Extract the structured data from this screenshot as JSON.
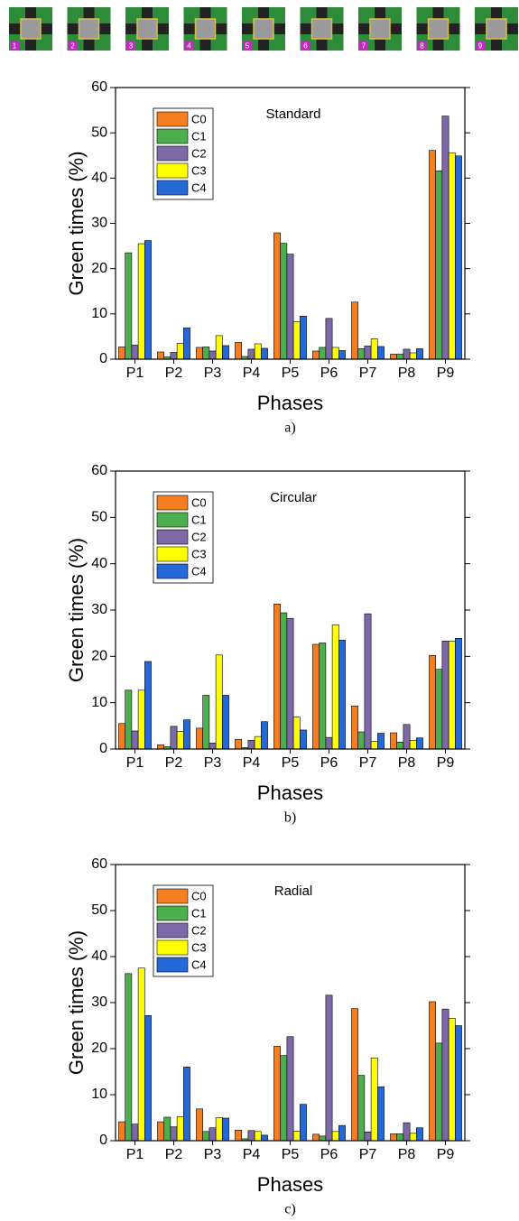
{
  "phase_icons": {
    "labels": [
      "1",
      "2",
      "3",
      "4",
      "5",
      "6",
      "7",
      "8",
      "9"
    ]
  },
  "chart_data": [
    {
      "type": "bar",
      "title": "Standard",
      "caption": "a)",
      "x_label": "Phases",
      "y_label": "Green times (%)",
      "categories": [
        "P1",
        "P2",
        "P3",
        "P4",
        "P5",
        "P6",
        "P7",
        "P8",
        "P9"
      ],
      "ylim": [
        0,
        60
      ],
      "yticks": [
        0,
        10,
        20,
        30,
        40,
        50,
        60
      ],
      "series": [
        {
          "name": "C0",
          "color": "#f57f20",
          "values": [
            2.7,
            1.6,
            2.6,
            3.7,
            27.9,
            1.8,
            12.6,
            1.1,
            46.1
          ]
        },
        {
          "name": "C1",
          "color": "#4cae4c",
          "values": [
            23.5,
            0.5,
            2.7,
            0.6,
            25.6,
            2.6,
            2.3,
            1.1,
            41.6
          ]
        },
        {
          "name": "C2",
          "color": "#7d69a8",
          "values": [
            3.1,
            1.5,
            1.8,
            2.2,
            23.2,
            9.0,
            2.9,
            2.2,
            53.7
          ]
        },
        {
          "name": "C3",
          "color": "#ffff00",
          "values": [
            25.5,
            3.5,
            5.2,
            3.4,
            8.3,
            2.6,
            4.5,
            1.4,
            45.6
          ]
        },
        {
          "name": "C4",
          "color": "#2469d6",
          "values": [
            26.2,
            6.9,
            3.0,
            2.4,
            9.5,
            1.9,
            2.8,
            2.3,
            44.9
          ]
        }
      ]
    },
    {
      "type": "bar",
      "title": "Circular",
      "caption": "b)",
      "x_label": "Phases",
      "y_label": "Green times (%)",
      "categories": [
        "P1",
        "P2",
        "P3",
        "P4",
        "P5",
        "P6",
        "P7",
        "P8",
        "P9"
      ],
      "ylim": [
        0,
        60
      ],
      "yticks": [
        0,
        10,
        20,
        30,
        40,
        50,
        60
      ],
      "series": [
        {
          "name": "C0",
          "color": "#f57f20",
          "values": [
            5.5,
            0.9,
            4.5,
            2.1,
            31.3,
            22.6,
            9.3,
            3.5,
            20.2
          ]
        },
        {
          "name": "C1",
          "color": "#4cae4c",
          "values": [
            12.7,
            0.5,
            11.6,
            0.3,
            29.4,
            22.9,
            3.7,
            1.5,
            17.2
          ]
        },
        {
          "name": "C2",
          "color": "#7d69a8",
          "values": [
            3.9,
            4.9,
            1.3,
            1.9,
            28.2,
            2.5,
            29.2,
            5.3,
            23.3
          ]
        },
        {
          "name": "C3",
          "color": "#ffff00",
          "values": [
            12.7,
            3.8,
            20.3,
            2.7,
            6.9,
            26.8,
            1.7,
            1.9,
            23.3
          ]
        },
        {
          "name": "C4",
          "color": "#2469d6",
          "values": [
            18.9,
            6.3,
            11.6,
            5.9,
            4.1,
            23.5,
            3.4,
            2.4,
            23.9
          ]
        }
      ]
    },
    {
      "type": "bar",
      "title": "Radial",
      "caption": "c)",
      "x_label": "Phases",
      "y_label": "Green times (%)",
      "categories": [
        "P1",
        "P2",
        "P3",
        "P4",
        "P5",
        "P6",
        "P7",
        "P8",
        "P9"
      ],
      "ylim": [
        0,
        60
      ],
      "yticks": [
        0,
        10,
        20,
        30,
        40,
        50,
        60
      ],
      "series": [
        {
          "name": "C0",
          "color": "#f57f20",
          "values": [
            4.1,
            4.1,
            6.9,
            2.3,
            20.5,
            1.4,
            28.7,
            1.5,
            30.2
          ]
        },
        {
          "name": "C1",
          "color": "#4cae4c",
          "values": [
            36.3,
            5.1,
            2.0,
            0.4,
            18.5,
            1.0,
            14.2,
            1.5,
            21.2
          ]
        },
        {
          "name": "C2",
          "color": "#7d69a8",
          "values": [
            3.6,
            3.0,
            2.8,
            2.2,
            22.6,
            31.6,
            1.9,
            3.9,
            28.6
          ]
        },
        {
          "name": "C3",
          "color": "#ffff00",
          "values": [
            37.5,
            5.2,
            5.0,
            2.0,
            2.1,
            2.0,
            18.0,
            1.6,
            26.6
          ]
        },
        {
          "name": "C4",
          "color": "#2469d6",
          "values": [
            27.2,
            16.0,
            4.9,
            1.2,
            7.9,
            3.3,
            11.7,
            2.8,
            25.0
          ]
        }
      ]
    }
  ]
}
